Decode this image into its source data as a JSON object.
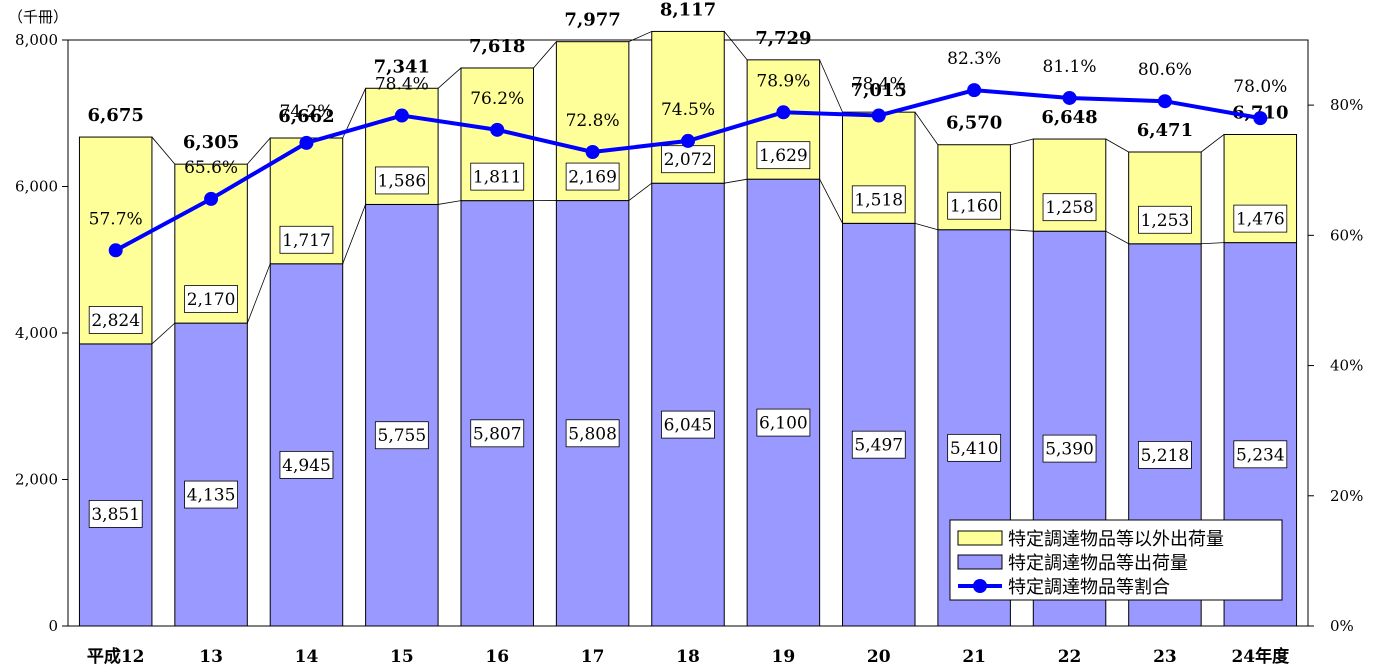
{
  "chart_data": {
    "type": "bar",
    "stacked": true,
    "unit_label": "（千冊）",
    "categories": [
      "平成12",
      "13",
      "14",
      "15",
      "16",
      "17",
      "18",
      "19",
      "20",
      "21",
      "22",
      "23",
      "24年度"
    ],
    "series": [
      {
        "name": "特定調達物品等出荷量",
        "kind": "bar",
        "axis": "left",
        "color": "#9999ff",
        "values": [
          3851,
          4135,
          4945,
          5755,
          5807,
          5808,
          6045,
          6100,
          5497,
          5410,
          5390,
          5218,
          5234
        ]
      },
      {
        "name": "特定調達物品等以外出荷量",
        "kind": "bar",
        "axis": "left",
        "color": "#ffff99",
        "values": [
          2824,
          2170,
          1717,
          1586,
          1811,
          2169,
          2072,
          1629,
          1518,
          1160,
          1258,
          1253,
          1476
        ]
      },
      {
        "name": "特定調達物品等割合",
        "kind": "line",
        "axis": "right",
        "color": "#0000ff",
        "values": [
          57.7,
          65.6,
          74.2,
          78.4,
          76.2,
          72.8,
          74.5,
          78.9,
          78.4,
          82.3,
          81.1,
          80.6,
          78.0
        ]
      }
    ],
    "totals": [
      6675,
      6305,
      6662,
      7341,
      7618,
      7977,
      8117,
      7729,
      7015,
      6570,
      6648,
      6471,
      6710
    ],
    "bar_value_labels": [
      "3,851",
      "4,135",
      "4,945",
      "5,755",
      "5,807",
      "5,808",
      "6,045",
      "6,100",
      "5,497",
      "5,410",
      "5,390",
      "5,218",
      "5,234"
    ],
    "other_value_labels": [
      "2,824",
      "2,170",
      "1,717",
      "1,586",
      "1,811",
      "2,169",
      "2,072",
      "1,629",
      "1,518",
      "1,160",
      "1,258",
      "1,253",
      "1,476"
    ],
    "total_labels": [
      "6,675",
      "6,305",
      "6,662",
      "7,341",
      "7,618",
      "7,977",
      "8,117",
      "7,729",
      "7,015",
      "6,570",
      "6,648",
      "6,471",
      "6,710"
    ],
    "percent_labels": [
      "57.7%",
      "65.6%",
      "74.2%",
      "78.4%",
      "76.2%",
      "72.8%",
      "74.5%",
      "78.9%",
      "78.4%",
      "82.3%",
      "81.1%",
      "80.6%",
      "78.0%"
    ],
    "y_left": {
      "min": 0,
      "max": 8000,
      "ticks": [
        0,
        2000,
        4000,
        6000,
        8000
      ],
      "tick_labels": [
        "0",
        "2,000",
        "4,000",
        "6,000",
        "8,000"
      ]
    },
    "y_right": {
      "min": 0,
      "max": 90,
      "ticks": [
        0,
        20,
        40,
        60,
        80
      ],
      "tick_labels": [
        "0%",
        "20%",
        "40%",
        "60%",
        "80%"
      ]
    },
    "legend": {
      "position": "bottom-right",
      "items": [
        "特定調達物品等以外出荷量",
        "特定調達物品等出荷量",
        "特定調達物品等割合"
      ]
    },
    "grid": false
  }
}
